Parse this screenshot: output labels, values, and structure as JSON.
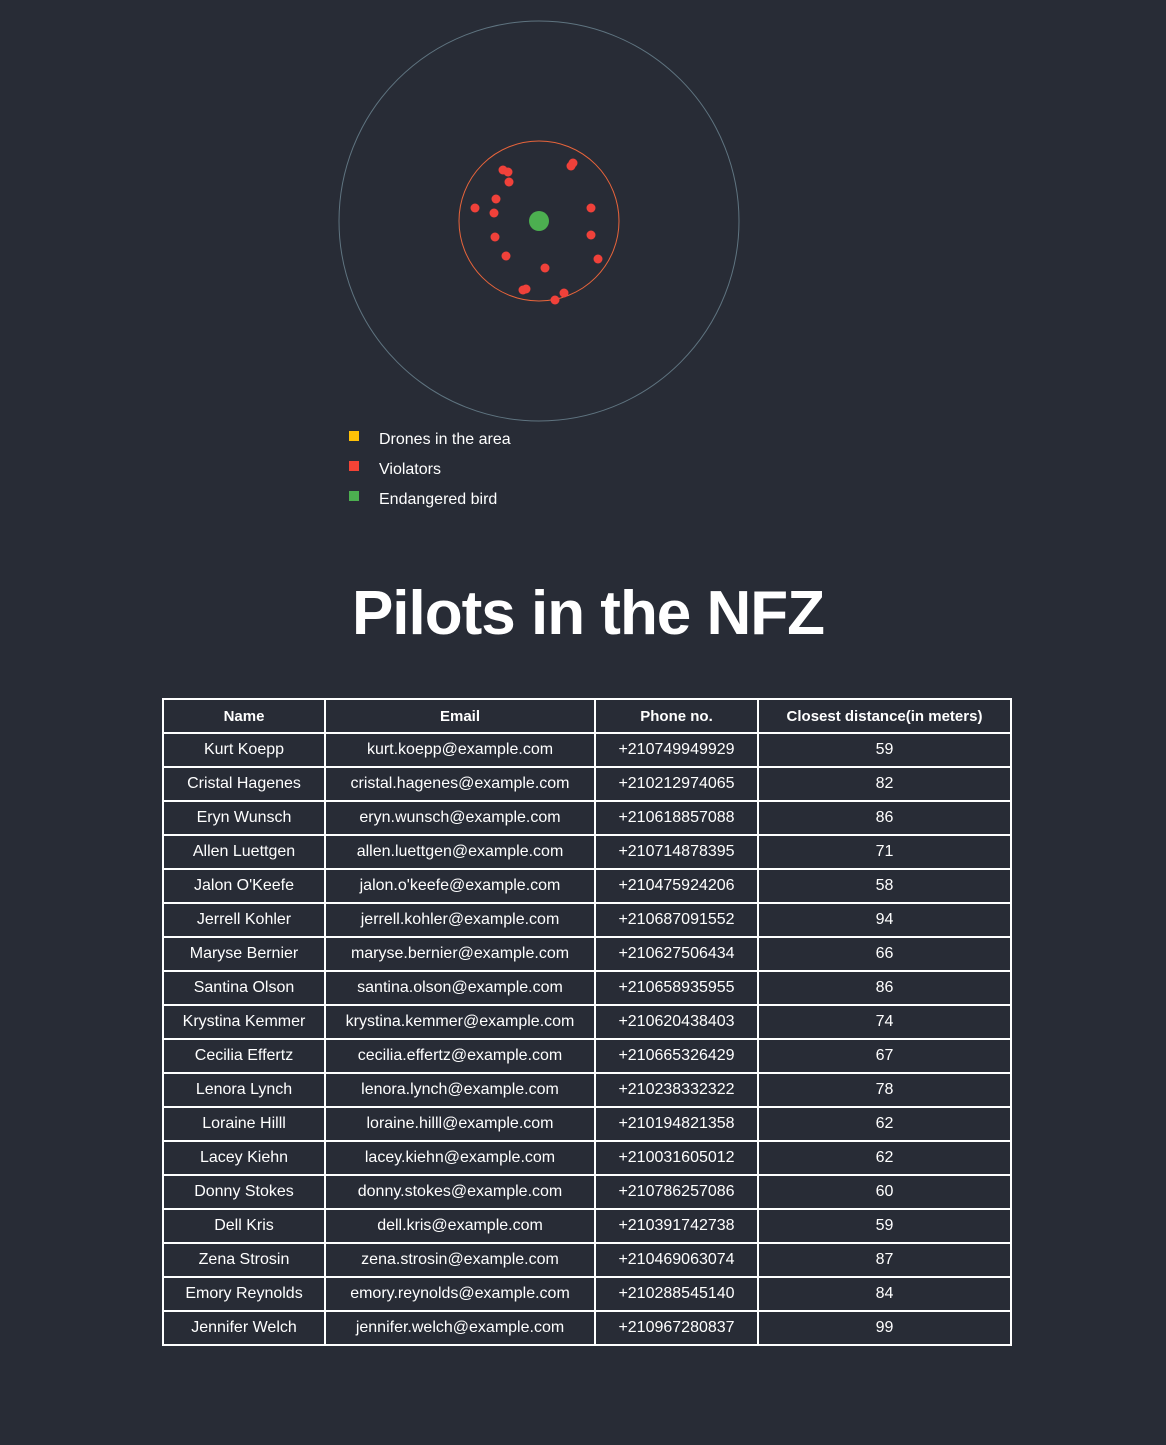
{
  "radar": {
    "colors": {
      "outer_ring": "#5f7480",
      "nfz_ring": "#e8643b",
      "violator": "#f0413a",
      "bird": "#4caf50"
    },
    "bird_icon": "endangered-bird-dot",
    "violator_count": 18
  },
  "legend": {
    "items": [
      {
        "label": "Drones in the area",
        "color": "#ffc107",
        "icon": "drone-square-icon"
      },
      {
        "label": "Violators",
        "color": "#f44336",
        "icon": "violator-square-icon"
      },
      {
        "label": "Endangered bird",
        "color": "#4caf50",
        "icon": "bird-square-icon"
      }
    ]
  },
  "title": "Pilots in the NFZ",
  "table": {
    "headers": {
      "name": "Name",
      "email": "Email",
      "phone": "Phone no.",
      "distance": "Closest distance(in meters)"
    },
    "rows": [
      {
        "name": "Kurt Koepp",
        "email": "kurt.koepp@example.com",
        "phone": "+210749949929",
        "distance": "59"
      },
      {
        "name": "Cristal Hagenes",
        "email": "cristal.hagenes@example.com",
        "phone": "+210212974065",
        "distance": "82"
      },
      {
        "name": "Eryn Wunsch",
        "email": "eryn.wunsch@example.com",
        "phone": "+210618857088",
        "distance": "86"
      },
      {
        "name": "Allen Luettgen",
        "email": "allen.luettgen@example.com",
        "phone": "+210714878395",
        "distance": "71"
      },
      {
        "name": "Jalon O'Keefe",
        "email": "jalon.o'keefe@example.com",
        "phone": "+210475924206",
        "distance": "58"
      },
      {
        "name": "Jerrell Kohler",
        "email": "jerrell.kohler@example.com",
        "phone": "+210687091552",
        "distance": "94"
      },
      {
        "name": "Maryse Bernier",
        "email": "maryse.bernier@example.com",
        "phone": "+210627506434",
        "distance": "66"
      },
      {
        "name": "Santina Olson",
        "email": "santina.olson@example.com",
        "phone": "+210658935955",
        "distance": "86"
      },
      {
        "name": "Krystina Kemmer",
        "email": "krystina.kemmer@example.com",
        "phone": "+210620438403",
        "distance": "74"
      },
      {
        "name": "Cecilia Effertz",
        "email": "cecilia.effertz@example.com",
        "phone": "+210665326429",
        "distance": "67"
      },
      {
        "name": "Lenora Lynch",
        "email": "lenora.lynch@example.com",
        "phone": "+210238332322",
        "distance": "78"
      },
      {
        "name": "Loraine Hilll",
        "email": "loraine.hilll@example.com",
        "phone": "+210194821358",
        "distance": "62"
      },
      {
        "name": "Lacey Kiehn",
        "email": "lacey.kiehn@example.com",
        "phone": "+210031605012",
        "distance": "62"
      },
      {
        "name": "Donny Stokes",
        "email": "donny.stokes@example.com",
        "phone": "+210786257086",
        "distance": "60"
      },
      {
        "name": "Dell Kris",
        "email": "dell.kris@example.com",
        "phone": "+210391742738",
        "distance": "59"
      },
      {
        "name": "Zena Strosin",
        "email": "zena.strosin@example.com",
        "phone": "+210469063074",
        "distance": "87"
      },
      {
        "name": "Emory Reynolds",
        "email": "emory.reynolds@example.com",
        "phone": "+210288545140",
        "distance": "84"
      },
      {
        "name": "Jennifer Welch",
        "email": "jennifer.welch@example.com",
        "phone": "+210967280837",
        "distance": "99"
      }
    ]
  }
}
